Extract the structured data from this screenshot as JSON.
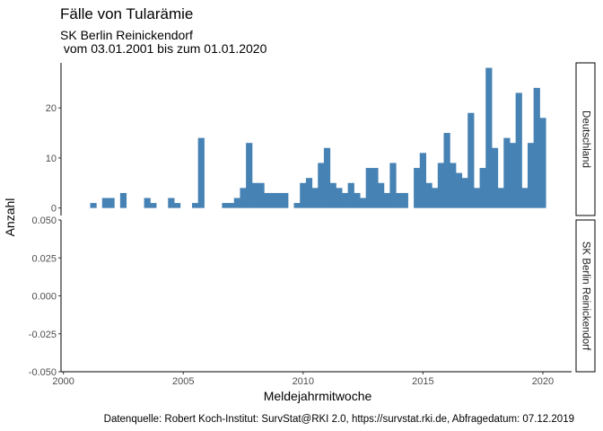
{
  "chart_data": {
    "type": "bar",
    "title": "Fälle von Tularämie",
    "subtitle_lines": [
      "SK Berlin Reinickendorf",
      " vom 03.01.2001 bis zum 01.01.2020"
    ],
    "xlabel": "Meldejahrmitwoche",
    "ylabel": "Anzahl",
    "caption": "Datenquelle: Robert Koch-Institut: SurvStat@RKI 2.0, https://survstat.rki.de, Abfragedatum: 07.12.2019",
    "bar_color": "#4682B4",
    "xlim": [
      1999.9,
      2021.2
    ],
    "x_ticks": [
      2000,
      2005,
      2010,
      2015,
      2020
    ],
    "x_tick_labels": [
      "2000",
      "2005",
      "2010",
      "2015",
      "2020"
    ],
    "panels": [
      {
        "name": "Deutschland",
        "ylim": [
          -1.5,
          29
        ],
        "y_ticks": [
          0,
          10,
          20
        ],
        "y_tick_labels": [
          "0",
          "10",
          "20"
        ],
        "bars": [
          {
            "x": 2001.25,
            "y": 1
          },
          {
            "x": 2001.75,
            "y": 2
          },
          {
            "x": 2002.0,
            "y": 2
          },
          {
            "x": 2002.5,
            "y": 3
          },
          {
            "x": 2003.5,
            "y": 2
          },
          {
            "x": 2003.75,
            "y": 1
          },
          {
            "x": 2004.5,
            "y": 2
          },
          {
            "x": 2004.75,
            "y": 1
          },
          {
            "x": 2005.5,
            "y": 1
          },
          {
            "x": 2005.75,
            "y": 14
          },
          {
            "x": 2006.75,
            "y": 1
          },
          {
            "x": 2007.0,
            "y": 1
          },
          {
            "x": 2007.25,
            "y": 2
          },
          {
            "x": 2007.5,
            "y": 4
          },
          {
            "x": 2007.75,
            "y": 13
          },
          {
            "x": 2008.0,
            "y": 5
          },
          {
            "x": 2008.25,
            "y": 5
          },
          {
            "x": 2008.5,
            "y": 3
          },
          {
            "x": 2008.75,
            "y": 3
          },
          {
            "x": 2009.0,
            "y": 3
          },
          {
            "x": 2009.25,
            "y": 3
          },
          {
            "x": 2009.75,
            "y": 1
          },
          {
            "x": 2010.0,
            "y": 5
          },
          {
            "x": 2010.25,
            "y": 6
          },
          {
            "x": 2010.5,
            "y": 4
          },
          {
            "x": 2010.75,
            "y": 9
          },
          {
            "x": 2011.0,
            "y": 12
          },
          {
            "x": 2011.25,
            "y": 5
          },
          {
            "x": 2011.5,
            "y": 4
          },
          {
            "x": 2011.75,
            "y": 3
          },
          {
            "x": 2012.0,
            "y": 5
          },
          {
            "x": 2012.25,
            "y": 3
          },
          {
            "x": 2012.5,
            "y": 2
          },
          {
            "x": 2012.75,
            "y": 8
          },
          {
            "x": 2013.0,
            "y": 8
          },
          {
            "x": 2013.25,
            "y": 5
          },
          {
            "x": 2013.5,
            "y": 3
          },
          {
            "x": 2013.75,
            "y": 9
          },
          {
            "x": 2014.0,
            "y": 3
          },
          {
            "x": 2014.25,
            "y": 3
          },
          {
            "x": 2014.75,
            "y": 8
          },
          {
            "x": 2015.0,
            "y": 11
          },
          {
            "x": 2015.25,
            "y": 5
          },
          {
            "x": 2015.5,
            "y": 4
          },
          {
            "x": 2015.75,
            "y": 9
          },
          {
            "x": 2016.0,
            "y": 15
          },
          {
            "x": 2016.25,
            "y": 9
          },
          {
            "x": 2016.5,
            "y": 7
          },
          {
            "x": 2016.75,
            "y": 6
          },
          {
            "x": 2017.0,
            "y": 19
          },
          {
            "x": 2017.25,
            "y": 4
          },
          {
            "x": 2017.5,
            "y": 8
          },
          {
            "x": 2017.75,
            "y": 28
          },
          {
            "x": 2018.0,
            "y": 12
          },
          {
            "x": 2018.25,
            "y": 4
          },
          {
            "x": 2018.5,
            "y": 14
          },
          {
            "x": 2018.75,
            "y": 13
          },
          {
            "x": 2019.0,
            "y": 23
          },
          {
            "x": 2019.25,
            "y": 4
          },
          {
            "x": 2019.5,
            "y": 13
          },
          {
            "x": 2019.75,
            "y": 24
          },
          {
            "x": 2020.0,
            "y": 18
          }
        ]
      },
      {
        "name": "SK Berlin Reinickendorf",
        "ylim": [
          -0.05,
          0.05
        ],
        "y_ticks": [
          -0.05,
          -0.025,
          0,
          0.025,
          0.05
        ],
        "y_tick_labels": [
          "-0.050",
          "-0.025",
          "0.000",
          "0.025",
          "0.050"
        ],
        "bars": []
      }
    ]
  }
}
